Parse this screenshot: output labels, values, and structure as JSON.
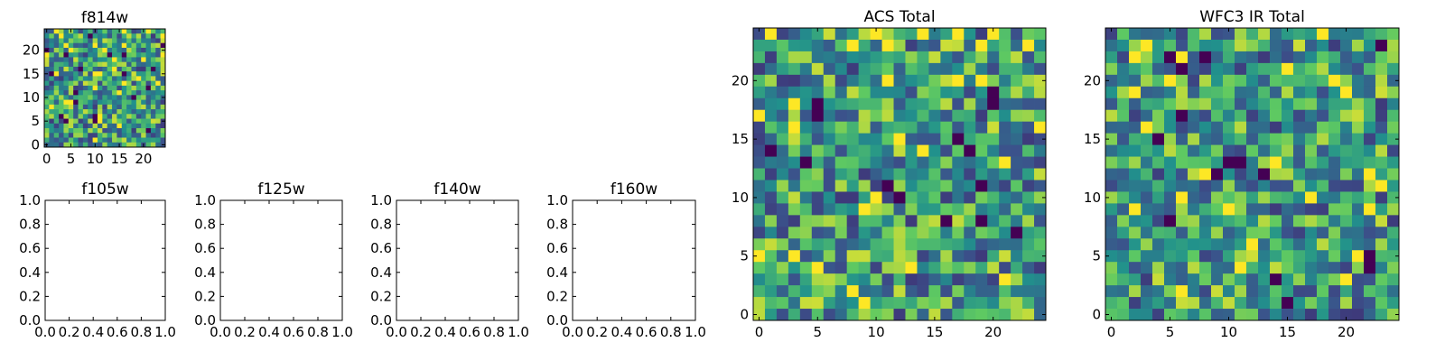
{
  "chart_data": [
    {
      "type": "heatmap",
      "title": "f814w",
      "grid_size": 25,
      "xlim": [
        0,
        25
      ],
      "ylim": [
        0,
        25
      ],
      "xticks": [
        "0",
        "5",
        "10",
        "15",
        "20"
      ],
      "yticks": [
        "0",
        "5",
        "10",
        "15",
        "20"
      ],
      "colormap": "viridis",
      "seed": 814
    },
    {
      "type": "empty",
      "title": "f105w",
      "xlim": [
        0.0,
        1.0
      ],
      "ylim": [
        0.0,
        1.0
      ],
      "xticks": [
        "0.0",
        "0.2",
        "0.4",
        "0.6",
        "0.8",
        "1.0"
      ],
      "yticks": [
        "0.0",
        "0.2",
        "0.4",
        "0.6",
        "0.8",
        "1.0"
      ]
    },
    {
      "type": "empty",
      "title": "f125w",
      "xlim": [
        0.0,
        1.0
      ],
      "ylim": [
        0.0,
        1.0
      ],
      "xticks": [
        "0.0",
        "0.2",
        "0.4",
        "0.6",
        "0.8",
        "1.0"
      ],
      "yticks": [
        "0.0",
        "0.2",
        "0.4",
        "0.6",
        "0.8",
        "1.0"
      ]
    },
    {
      "type": "empty",
      "title": "f140w",
      "xlim": [
        0.0,
        1.0
      ],
      "ylim": [
        0.0,
        1.0
      ],
      "xticks": [
        "0.0",
        "0.2",
        "0.4",
        "0.6",
        "0.8",
        "1.0"
      ],
      "yticks": [
        "0.0",
        "0.2",
        "0.4",
        "0.6",
        "0.8",
        "1.0"
      ]
    },
    {
      "type": "empty",
      "title": "f160w",
      "xlim": [
        0.0,
        1.0
      ],
      "ylim": [
        0.0,
        1.0
      ],
      "xticks": [
        "0.0",
        "0.2",
        "0.4",
        "0.6",
        "0.8",
        "1.0"
      ],
      "yticks": [
        "0.0",
        "0.2",
        "0.4",
        "0.6",
        "0.8",
        "1.0"
      ]
    },
    {
      "type": "heatmap",
      "title": "ACS Total",
      "grid_size": 25,
      "xlim": [
        0,
        25
      ],
      "ylim": [
        0,
        25
      ],
      "xticks": [
        "0",
        "5",
        "10",
        "15",
        "20"
      ],
      "yticks": [
        "0",
        "5",
        "10",
        "15",
        "20"
      ],
      "colormap": "viridis",
      "seed": 1234
    },
    {
      "type": "heatmap",
      "title": "WFC3 IR Total",
      "grid_size": 25,
      "xlim": [
        0,
        25
      ],
      "ylim": [
        0,
        25
      ],
      "xticks": [
        "0",
        "5",
        "10",
        "15",
        "20"
      ],
      "yticks": [
        "0",
        "5",
        "10",
        "15",
        "20"
      ],
      "colormap": "viridis",
      "seed": 4321
    }
  ]
}
